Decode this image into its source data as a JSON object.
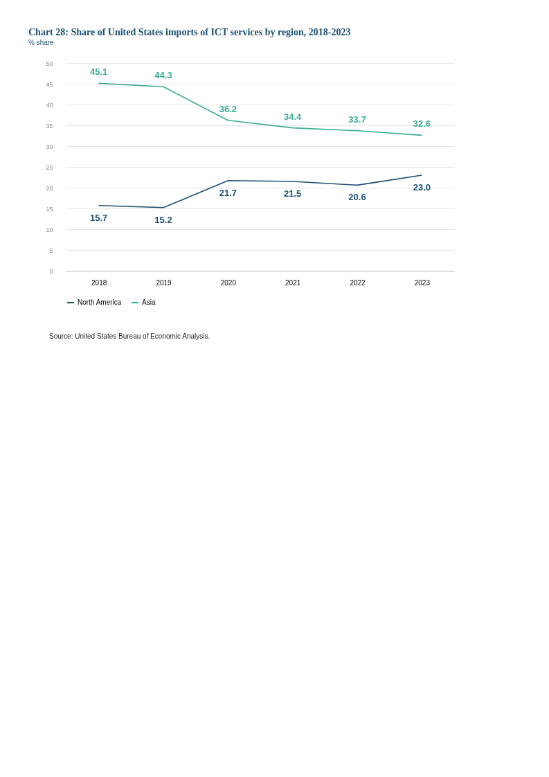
{
  "chart_data": {
    "type": "line",
    "title": "Chart 28: Share of United States imports of ICT services by region, 2018-2023",
    "subtitle": "% share",
    "categories": [
      "2018",
      "2019",
      "2020",
      "2021",
      "2022",
      "2023"
    ],
    "series": [
      {
        "name": "North America",
        "color": "#1b4f72",
        "values": [
          15.7,
          15.2,
          21.7,
          21.5,
          20.6,
          23.0
        ],
        "value_labels": [
          "15.7",
          "15.2",
          "21.7",
          "21.5",
          "20.6",
          "23.0"
        ]
      },
      {
        "name": "Asia",
        "color": "#3aab97",
        "values": [
          45.1,
          44.3,
          36.2,
          34.4,
          33.7,
          32.6
        ],
        "value_labels": [
          "45.1",
          "44.3",
          "36.2",
          "34.4",
          "33.7",
          "32.6"
        ]
      }
    ],
    "ylim": [
      0,
      50
    ],
    "yticks": [
      0,
      5,
      10,
      15,
      20,
      25,
      30,
      35,
      40,
      45,
      50
    ],
    "grid": "y",
    "legend": "bottom",
    "marker": "none",
    "line_style": "solid",
    "annotations": [
      "Source: United States Bureau of Economic Analysis."
    ]
  }
}
